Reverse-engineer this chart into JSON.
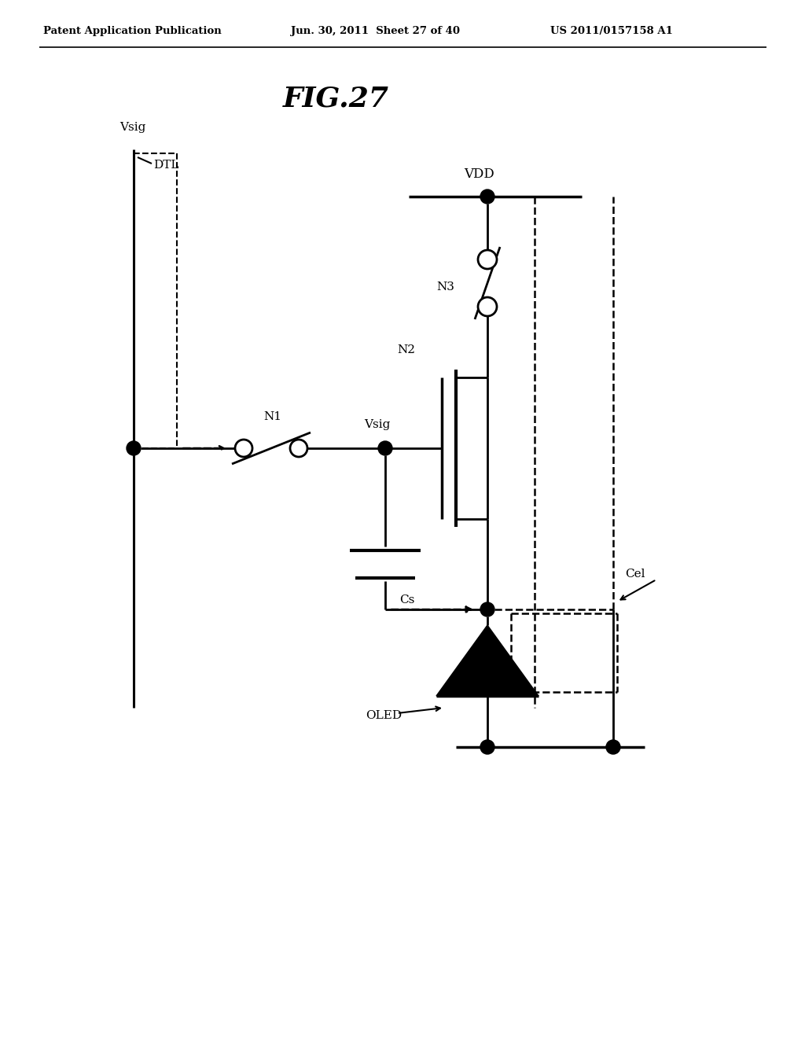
{
  "title": "FIG.27",
  "header_left": "Patent Application Publication",
  "header_mid": "Jun. 30, 2011  Sheet 27 of 40",
  "header_right": "US 2011/0157158 A1",
  "bg_color": "#ffffff",
  "text_color": "#000000"
}
